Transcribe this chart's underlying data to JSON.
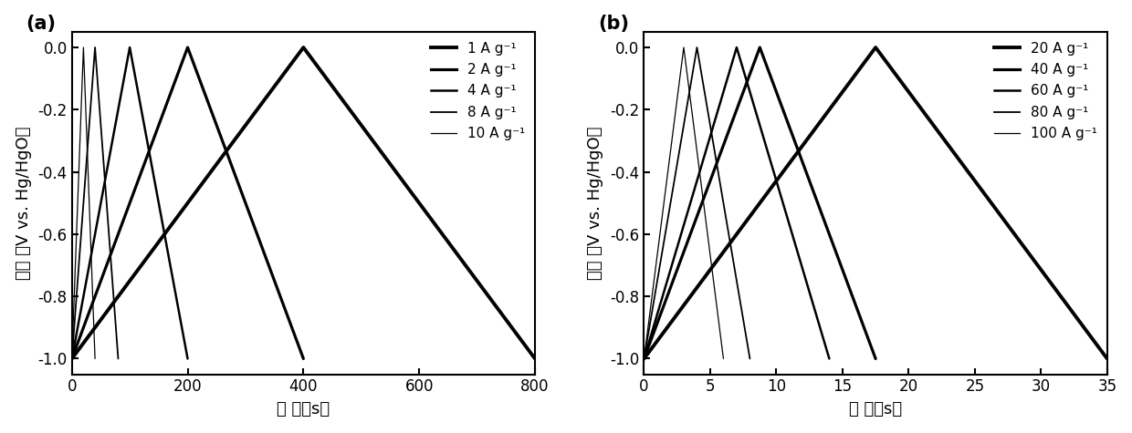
{
  "panel_a": {
    "title": "(a)",
    "xlabel": "时 间（s）",
    "ylabel": "电压 （V vs. Hg/HgO）",
    "xlim": [
      0,
      800
    ],
    "ylim": [
      -1.05,
      0.05
    ],
    "xticks": [
      0,
      200,
      400,
      600,
      800
    ],
    "yticks": [
      0.0,
      -0.2,
      -0.4,
      -0.6,
      -0.8,
      -1.0
    ],
    "ytick_labels": [
      "0.0",
      "-0.2",
      "-0.4",
      "-0.6",
      "-0.8",
      "-1.0"
    ],
    "curves": [
      {
        "label": "1 A g⁻¹",
        "t_discharge": 400,
        "t_charge": 800,
        "lw": 2.8
      },
      {
        "label": "2 A g⁻¹",
        "t_discharge": 200,
        "t_charge": 400,
        "lw": 2.3
      },
      {
        "label": "4 A g⁻¹",
        "t_discharge": 100,
        "t_charge": 200,
        "lw": 1.8
      },
      {
        "label": "8 A g⁻¹",
        "t_discharge": 40,
        "t_charge": 80,
        "lw": 1.3
      },
      {
        "label": "10 A g⁻¹",
        "t_discharge": 20,
        "t_charge": 40,
        "lw": 0.9
      }
    ]
  },
  "panel_b": {
    "title": "(b)",
    "xlabel": "时 间（s）",
    "ylabel": "电压 （V vs. Hg/HgO）",
    "xlim": [
      0,
      35
    ],
    "ylim": [
      -1.05,
      0.05
    ],
    "xticks": [
      0,
      5,
      10,
      15,
      20,
      25,
      30,
      35
    ],
    "yticks": [
      0.0,
      -0.2,
      -0.4,
      -0.6,
      -0.8,
      -1.0
    ],
    "ytick_labels": [
      "0.0",
      "-0.2",
      "-0.4",
      "-0.6",
      "-0.8",
      "-1.0"
    ],
    "curves": [
      {
        "label": "20 A g⁻¹",
        "t_discharge": 17.5,
        "t_charge": 35.0,
        "lw": 2.8
      },
      {
        "label": "40 A g⁻¹",
        "t_discharge": 8.75,
        "t_charge": 17.5,
        "lw": 2.3
      },
      {
        "label": "60 A g⁻¹",
        "t_discharge": 7.0,
        "t_charge": 14.0,
        "lw": 1.8
      },
      {
        "label": "80 A g⁻¹",
        "t_discharge": 4.0,
        "t_charge": 8.0,
        "lw": 1.3
      },
      {
        "label": "100 A g⁻¹",
        "t_discharge": 3.0,
        "t_charge": 6.0,
        "lw": 0.9
      }
    ]
  },
  "line_color": "#000000",
  "bg_color": "#ffffff",
  "label_fontsize": 13,
  "tick_fontsize": 12,
  "legend_fontsize": 11,
  "title_fontsize": 15
}
